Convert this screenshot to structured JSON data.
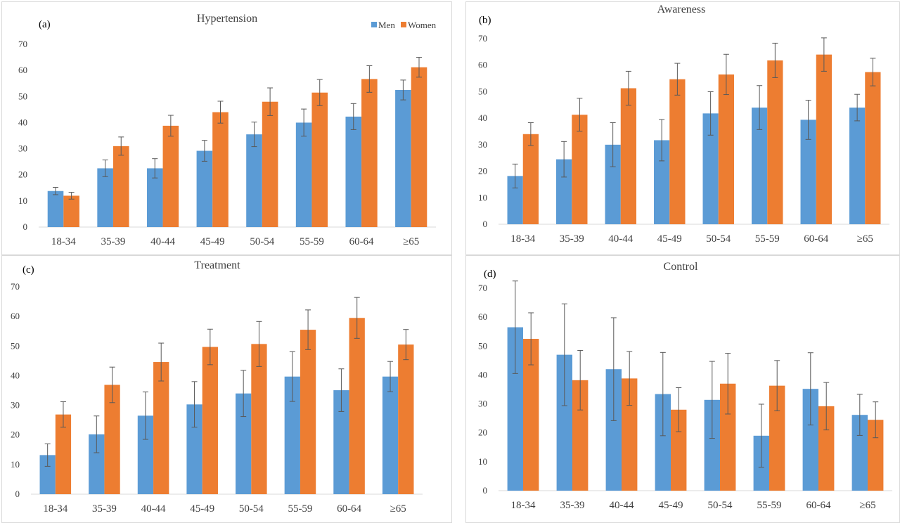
{
  "colors": {
    "men": "#5b9bd5",
    "women": "#ed7d31",
    "error": "#595959",
    "axis": "#d9d9d9"
  },
  "chart_data": [
    {
      "type": "bar",
      "panel_label": "(a)",
      "title": "Hypertension",
      "categories": [
        "18-34",
        "35-39",
        "40-44",
        "45-49",
        "50-54",
        "55-59",
        "60-64",
        "≥65"
      ],
      "ylim": [
        0,
        70
      ],
      "yticks": [
        0,
        10,
        20,
        30,
        40,
        50,
        60,
        70
      ],
      "legend": "top-right",
      "series": [
        {
          "name": "Men",
          "values": [
            13.8,
            22.5,
            22.5,
            29.2,
            35.5,
            40.0,
            42.3,
            52.5
          ],
          "error": [
            1.4,
            3.2,
            3.7,
            4.0,
            4.7,
            5.2,
            5.0,
            3.8
          ]
        },
        {
          "name": "Women",
          "values": [
            12.0,
            31.0,
            38.8,
            44.0,
            48.0,
            51.5,
            56.7,
            61.2
          ],
          "error": [
            1.3,
            3.5,
            4.0,
            4.2,
            5.3,
            5.0,
            5.1,
            3.8
          ]
        }
      ]
    },
    {
      "type": "bar",
      "panel_label": "(b)",
      "title": "Awareness",
      "categories": [
        "18-34",
        "35-39",
        "40-44",
        "45-49",
        "50-54",
        "55-59",
        "60-64",
        "≥65"
      ],
      "ylim": [
        0,
        70
      ],
      "yticks": [
        0,
        10,
        20,
        30,
        40,
        50,
        60,
        70
      ],
      "series": [
        {
          "values": [
            18.2,
            24.5,
            30.0,
            31.7,
            41.8,
            44.0,
            39.4,
            44.0
          ],
          "error": [
            4.5,
            6.7,
            8.3,
            7.8,
            8.2,
            8.3,
            7.4,
            5.0
          ]
        },
        {
          "values": [
            34.0,
            41.3,
            51.3,
            54.7,
            56.5,
            61.8,
            64.0,
            57.4
          ],
          "error": [
            4.3,
            6.2,
            6.4,
            6.0,
            7.6,
            6.5,
            6.3,
            5.2
          ]
        }
      ]
    },
    {
      "type": "bar",
      "panel_label": "(c)",
      "title": "Treatment",
      "categories": [
        "18-34",
        "35-39",
        "40-44",
        "45-49",
        "50-54",
        "55-59",
        "60-64",
        "≥65"
      ],
      "ylim": [
        0,
        70
      ],
      "yticks": [
        0,
        10,
        20,
        30,
        40,
        50,
        60,
        70
      ],
      "series": [
        {
          "values": [
            13.2,
            20.2,
            26.5,
            30.3,
            34.0,
            39.7,
            35.1,
            39.7
          ],
          "error": [
            3.8,
            6.2,
            8.0,
            7.7,
            7.8,
            8.4,
            7.2,
            5.1
          ]
        },
        {
          "values": [
            26.9,
            36.9,
            44.6,
            49.7,
            50.7,
            55.5,
            59.5,
            50.5
          ],
          "error": [
            4.3,
            6.0,
            6.4,
            6.0,
            7.6,
            6.7,
            6.9,
            5.1
          ]
        }
      ]
    },
    {
      "type": "bar",
      "panel_label": "(d)",
      "title": "Control",
      "categories": [
        "18-34",
        "35-39",
        "40-44",
        "45-49",
        "50-54",
        "55-59",
        "60-64",
        "≥65"
      ],
      "ylim": [
        0,
        70
      ],
      "yticks": [
        0,
        10,
        20,
        30,
        40,
        50,
        60,
        70
      ],
      "series": [
        {
          "values": [
            56.5,
            47.0,
            42.0,
            33.4,
            31.4,
            19.0,
            35.2,
            26.2
          ],
          "error": [
            16.0,
            17.6,
            17.8,
            14.4,
            13.3,
            10.9,
            12.5,
            7.1
          ]
        },
        {
          "values": [
            52.5,
            38.2,
            38.8,
            28.0,
            37.0,
            36.3,
            29.2,
            24.5
          ],
          "error": [
            9.0,
            10.3,
            9.3,
            7.6,
            10.5,
            8.7,
            8.2,
            6.2
          ]
        }
      ]
    }
  ]
}
